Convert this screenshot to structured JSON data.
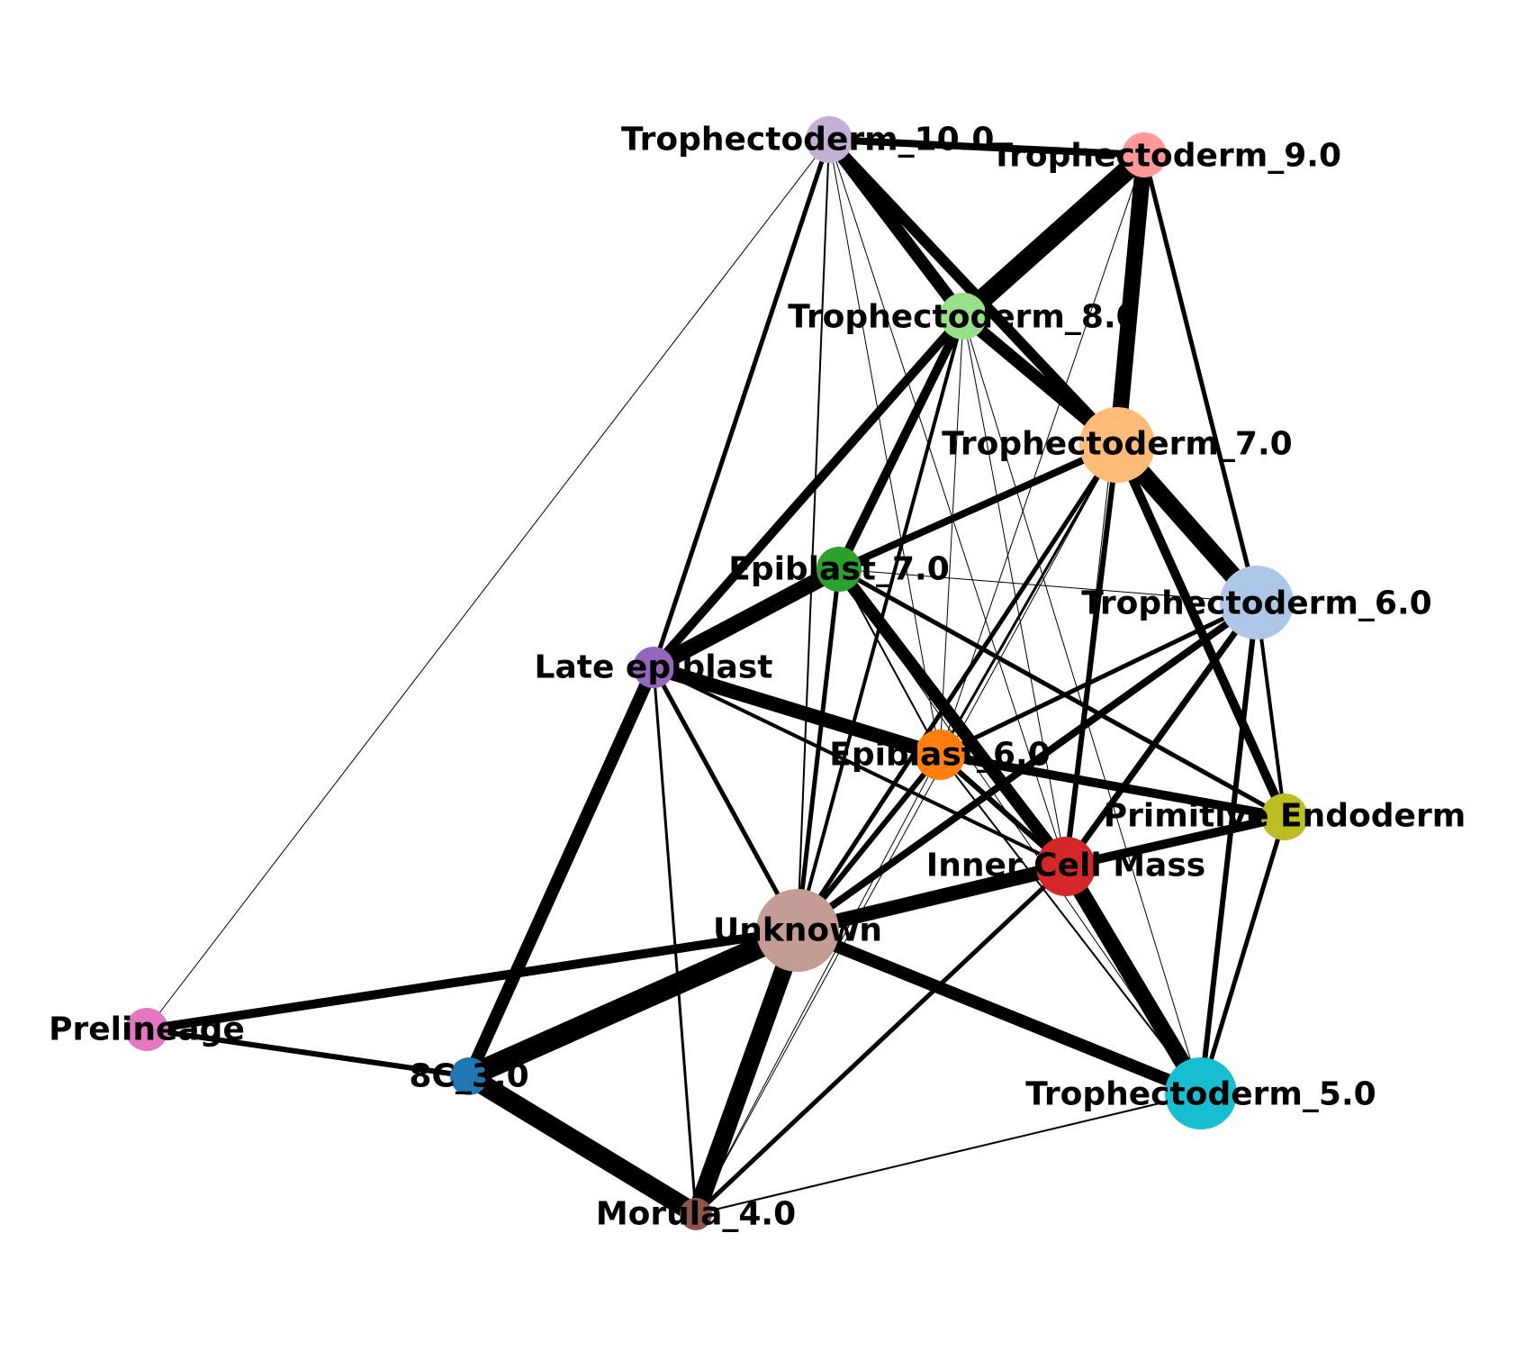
{
  "graph": {
    "nodes": [
      {
        "id": "tr10",
        "label": "Trophectoderm_10.0",
        "color": "#c5b0d5"
      },
      {
        "id": "tr9",
        "label": "Trophectoderm_9.0",
        "color": "#ff9896"
      },
      {
        "id": "tr8",
        "label": "Trophectoderm_8.0",
        "color": "#98df8a"
      },
      {
        "id": "tr7",
        "label": "Trophectoderm_7.0",
        "color": "#ffbb78"
      },
      {
        "id": "tr6",
        "label": "Trophectoderm_6.0",
        "color": "#aec7e8"
      },
      {
        "id": "ep7",
        "label": "Epiblast_7.0",
        "color": "#2ca02c"
      },
      {
        "id": "late",
        "label": "Late epiblast",
        "color": "#9467bd"
      },
      {
        "id": "ep6",
        "label": "Epiblast_6.0",
        "color": "#ff7f0e"
      },
      {
        "id": "pe",
        "label": "Primitive Endoderm",
        "color": "#bcbd22"
      },
      {
        "id": "icm",
        "label": "Inner Cell Mass",
        "color": "#d62728"
      },
      {
        "id": "unk",
        "label": "Unknown",
        "color": "#c49c94"
      },
      {
        "id": "pre",
        "label": "Prelineage",
        "color": "#e377c2"
      },
      {
        "id": "c8",
        "label": "8C_3.0",
        "color": "#1f77b4"
      },
      {
        "id": "tr5",
        "label": "Trophectoderm_5.0",
        "color": "#17becf"
      },
      {
        "id": "mor",
        "label": "Morula_4.0",
        "color": "#8c564b"
      }
    ]
  }
}
